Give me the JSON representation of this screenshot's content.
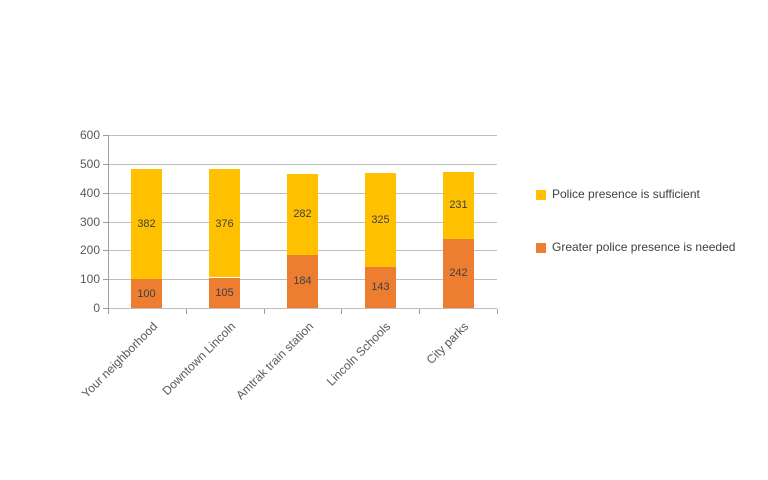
{
  "chart_data": {
    "type": "bar",
    "stacked": true,
    "title": "",
    "xlabel": "",
    "ylabel": "",
    "categories": [
      "Your neighborhood",
      "Downtown Lincoln",
      "Amtrak train station",
      "Lincoln Schools",
      "City parks"
    ],
    "series": [
      {
        "name": "Greater police presence is needed",
        "color": "#ED7D31",
        "values": [
          100,
          105,
          184,
          143,
          242
        ]
      },
      {
        "name": "Police presence is sufficient",
        "color": "#FFC000",
        "values": [
          382,
          376,
          282,
          325,
          231
        ]
      }
    ],
    "totals": [
      482,
      481,
      466,
      468,
      473
    ],
    "legend": [
      {
        "label": "Police presence is sufficient",
        "color": "#FFC000"
      },
      {
        "label": "Greater police presence is needed",
        "color": "#ED7D31"
      }
    ],
    "legend_position": "right",
    "ylim": [
      0,
      600
    ],
    "yticks": [
      "0",
      "100",
      "200",
      "300",
      "400",
      "500",
      "600"
    ],
    "ytick_values": [
      0,
      100,
      200,
      300,
      400,
      500,
      600
    ],
    "grid": true,
    "data_labels": true
  },
  "colors": {
    "background": "#FFFFFF",
    "gridline": "#BFBFBF",
    "axis": "#9E9E9E",
    "axis_text": "#595959",
    "data_label": "#404040",
    "series_sufficient": "#FFC000",
    "series_needed": "#ED7D31"
  }
}
